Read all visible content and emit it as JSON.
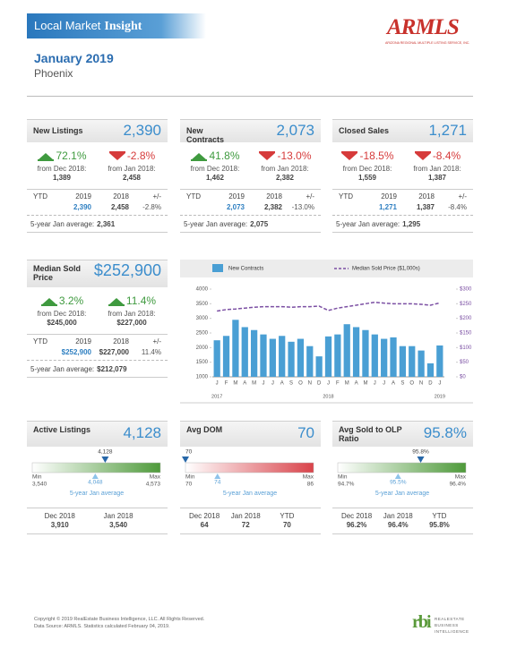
{
  "header": {
    "title": "Local Market",
    "title_emphasis": "Insight",
    "logo": "ARMLS",
    "logo_caption": "ARIZONA REGIONAL MULTIPLE LISTING SERVICE, INC.",
    "period": "January 2019",
    "area": "Phoenix"
  },
  "metrics": [
    {
      "title": "New Listings",
      "value": "2,390",
      "changes": [
        {
          "percent": "72.1%",
          "label": "from Dec 2018:",
          "base": "1,389"
        },
        {
          "percent": "-2.8%",
          "label": "from Jan 2018:",
          "base": "2,458"
        }
      ],
      "ytd": {
        "headers": [
          "YTD",
          "2019",
          "2018",
          "+/-"
        ],
        "values": [
          "2,390",
          "2,458",
          "-2.8%"
        ]
      },
      "average_label": "5-year Jan average:",
      "average": "2,361"
    },
    {
      "title": "New Contracts",
      "value": "2,073",
      "changes": [
        {
          "percent": "41.8%",
          "label": "from Dec 2018:",
          "base": "1,462"
        },
        {
          "percent": "-13.0%",
          "label": "from Jan 2018:",
          "base": "2,382"
        }
      ],
      "ytd": {
        "headers": [
          "YTD",
          "2019",
          "2018",
          "+/-"
        ],
        "values": [
          "2,073",
          "2,382",
          "-13.0%"
        ]
      },
      "average_label": "5-year Jan average:",
      "average": "2,075"
    },
    {
      "title": "Closed Sales",
      "value": "1,271",
      "changes": [
        {
          "percent": "-18.5%",
          "label": "from Dec 2018:",
          "base": "1,559"
        },
        {
          "percent": "-8.4%",
          "label": "from Jan 2018:",
          "base": "1,387"
        }
      ],
      "ytd": {
        "headers": [
          "YTD",
          "2019",
          "2018",
          "+/-"
        ],
        "values": [
          "1,271",
          "1,387",
          "-8.4%"
        ]
      },
      "average_label": "5-year Jan average:",
      "average": "1,295"
    },
    {
      "title": "Median Sold Price",
      "value": "$252,900",
      "changes": [
        {
          "percent": "3.2%",
          "label": "from Dec 2018:",
          "base": "$245,000"
        },
        {
          "percent": "11.4%",
          "label": "from Jan 2018:",
          "base": "$227,000"
        }
      ],
      "ytd": {
        "headers": [
          "YTD",
          "2019",
          "2018",
          "+/-"
        ],
        "values": [
          "$252,900",
          "$227,000",
          "11.4%"
        ]
      },
      "average_label": "5-year Jan average:",
      "average": "$212,079"
    }
  ],
  "chart_data": {
    "type": "bar-line",
    "categories": [
      "J",
      "F",
      "M",
      "A",
      "M",
      "J",
      "J",
      "A",
      "S",
      "O",
      "N",
      "D",
      "J",
      "F",
      "M",
      "A",
      "M",
      "J",
      "J",
      "A",
      "S",
      "O",
      "N",
      "D",
      "J"
    ],
    "year_labels": [
      "2017",
      "2018",
      "2019"
    ],
    "series": [
      {
        "name": "New Contracts",
        "color": "#4a9fd4",
        "values": [
          2250,
          2400,
          2950,
          2700,
          2600,
          2450,
          2300,
          2400,
          2200,
          2300,
          2050,
          1700,
          2382,
          2450,
          2800,
          2700,
          2600,
          2450,
          2300,
          2350,
          2050,
          2050,
          1900,
          1462,
          2073
        ]
      },
      {
        "name": "Median Sold Price ($1,000s)",
        "color": "#7b4fa3",
        "axis": "y2",
        "values": [
          225,
          230,
          232,
          235,
          238,
          240,
          240,
          240,
          238,
          240,
          240,
          242,
          227,
          235,
          240,
          245,
          250,
          255,
          252,
          250,
          250,
          250,
          248,
          245,
          252.9
        ]
      }
    ],
    "ylim": [
      1000,
      4000
    ],
    "yticks": [
      1000,
      1500,
      2000,
      2500,
      3000,
      3500,
      4000
    ],
    "y2lim": [
      0,
      300
    ],
    "y2ticks": [
      {
        "value": 0,
        "label": "$0"
      },
      {
        "value": 50,
        "label": "$50"
      },
      {
        "value": 100,
        "label": "$100"
      },
      {
        "value": 150,
        "label": "$150"
      },
      {
        "value": 200,
        "label": "$200"
      },
      {
        "value": 250,
        "label": "$250"
      },
      {
        "value": 300,
        "label": "$300"
      }
    ]
  },
  "gauges": [
    {
      "title": "Active Listings",
      "value": "4,128",
      "color": "#4e9a3a",
      "current": {
        "value": 4128,
        "label": "4,128"
      },
      "min_label": "Min",
      "min": {
        "value": 3540,
        "label": "3,540"
      },
      "max_label": "Max",
      "max": {
        "value": 4573,
        "label": "4,573"
      },
      "average": {
        "value": 4048,
        "label": "4,048"
      },
      "average_label": "5-year Jan average",
      "history": [
        {
          "label": "Dec 2018",
          "value": "3,910"
        },
        {
          "label": "Jan 2018",
          "value": "3,540"
        }
      ]
    },
    {
      "title": "Avg DOM",
      "value": "70",
      "color": "#d9434a",
      "current": 70,
      "min_label": "Min",
      "min": 70,
      "max_label": "Max",
      "max": 86,
      "average": 74,
      "average_label": "5-year Jan average",
      "history": [
        {
          "label": "Dec 2018",
          "value": "64"
        },
        {
          "label": "Jan 2018",
          "value": "72"
        },
        {
          "label": "YTD",
          "value": "70"
        }
      ]
    },
    {
      "title": "Avg Sold to OLP Ratio",
      "value": "95.8%",
      "color": "#4e9a3a",
      "current": {
        "value": 95.8,
        "label": "95.8%"
      },
      "min_label": "Min",
      "min": {
        "value": 94.7,
        "label": "94.7%"
      },
      "max_label": "Max",
      "max": {
        "value": 96.4,
        "label": "96.4%"
      },
      "average": {
        "value": 95.5,
        "label": "95.5%"
      },
      "average_label": "5-year Jan average",
      "history": [
        {
          "label": "Dec 2018",
          "value": "96.2%"
        },
        {
          "label": "Jan 2018",
          "value": "96.4%"
        },
        {
          "label": "YTD",
          "value": "95.8%"
        }
      ]
    }
  ],
  "footer": {
    "copyright": "Copyright © 2019 RealEstate Business Intelligence, LLC. All Rights Reserved.",
    "source": "Data Source: ARMLS. Statistics calculated February 04, 2019.",
    "logo": "rbi",
    "logo_caption": [
      "REALESTATE",
      "BUSINESS",
      "INTELLIGENCE"
    ]
  }
}
